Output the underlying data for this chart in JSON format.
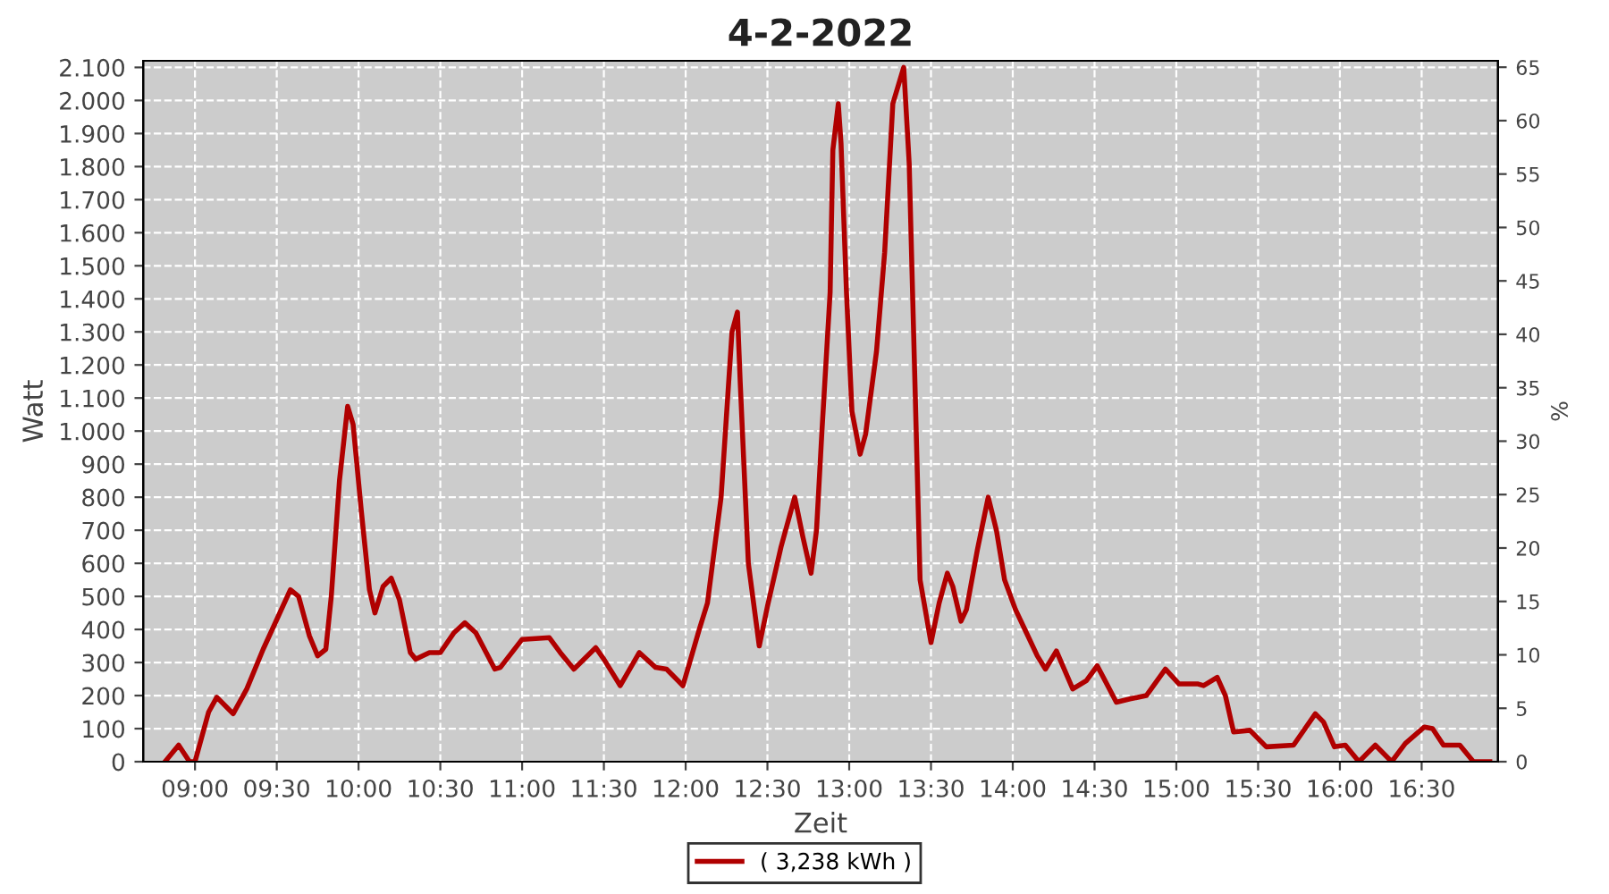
{
  "chart_data": {
    "type": "line",
    "title": "4-2-2022",
    "xlabel": "Zeit",
    "ylabel": "Watt",
    "y2label": "%",
    "x": [
      "2022-02-04T08:49",
      "2022-02-04T08:54",
      "2022-02-04T08:58",
      "2022-02-04T09:00",
      "2022-02-04T09:05",
      "2022-02-04T09:08",
      "2022-02-04T09:14",
      "2022-02-04T09:19",
      "2022-02-04T09:25",
      "2022-02-04T09:30",
      "2022-02-04T09:35",
      "2022-02-04T09:38",
      "2022-02-04T09:42",
      "2022-02-04T09:45",
      "2022-02-04T09:48",
      "2022-02-04T09:50",
      "2022-02-04T09:53",
      "2022-02-04T09:56",
      "2022-02-04T09:58",
      "2022-02-04T10:01",
      "2022-02-04T10:04",
      "2022-02-04T10:06",
      "2022-02-04T10:09",
      "2022-02-04T10:12",
      "2022-02-04T10:15",
      "2022-02-04T10:19",
      "2022-02-04T10:21",
      "2022-02-04T10:26",
      "2022-02-04T10:30",
      "2022-02-04T10:35",
      "2022-02-04T10:39",
      "2022-02-04T10:43",
      "2022-02-04T10:50",
      "2022-02-04T10:52",
      "2022-02-04T11:00",
      "2022-02-04T11:10",
      "2022-02-04T11:14",
      "2022-02-04T11:19",
      "2022-02-04T11:27",
      "2022-02-04T11:30",
      "2022-02-04T11:36",
      "2022-02-04T11:43",
      "2022-02-04T11:49",
      "2022-02-04T11:53",
      "2022-02-04T11:59",
      "2022-02-04T12:05",
      "2022-02-04T12:08",
      "2022-02-04T12:13",
      "2022-02-04T12:17",
      "2022-02-04T12:19",
      "2022-02-04T12:20",
      "2022-02-04T12:23",
      "2022-02-04T12:27",
      "2022-02-04T12:30",
      "2022-02-04T12:35",
      "2022-02-04T12:40",
      "2022-02-04T12:43",
      "2022-02-04T12:46",
      "2022-02-04T12:48",
      "2022-02-04T12:50",
      "2022-02-04T12:53",
      "2022-02-04T12:54",
      "2022-02-04T12:56",
      "2022-02-04T12:57",
      "2022-02-04T12:59",
      "2022-02-04T13:01",
      "2022-02-04T13:04",
      "2022-02-04T13:06",
      "2022-02-04T13:10",
      "2022-02-04T13:13",
      "2022-02-04T13:16",
      "2022-02-04T13:20",
      "2022-02-04T13:22",
      "2022-02-04T13:24",
      "2022-02-04T13:26",
      "2022-02-04T13:30",
      "2022-02-04T13:33",
      "2022-02-04T13:36",
      "2022-02-04T13:38",
      "2022-02-04T13:41",
      "2022-02-04T13:43",
      "2022-02-04T13:47",
      "2022-02-04T13:51",
      "2022-02-04T13:54",
      "2022-02-04T13:57",
      "2022-02-04T14:01",
      "2022-02-04T14:05",
      "2022-02-04T14:09",
      "2022-02-04T14:12",
      "2022-02-04T14:16",
      "2022-02-04T14:22",
      "2022-02-04T14:27",
      "2022-02-04T14:31",
      "2022-02-04T14:38",
      "2022-02-04T14:43",
      "2022-02-04T14:49",
      "2022-02-04T14:56",
      "2022-02-04T15:01",
      "2022-02-04T15:08",
      "2022-02-04T15:10",
      "2022-02-04T15:15",
      "2022-02-04T15:18",
      "2022-02-04T15:21",
      "2022-02-04T15:27",
      "2022-02-04T15:33",
      "2022-02-04T15:43",
      "2022-02-04T15:51",
      "2022-02-04T15:54",
      "2022-02-04T15:58",
      "2022-02-04T16:02",
      "2022-02-04T16:07",
      "2022-02-04T16:13",
      "2022-02-04T16:19",
      "2022-02-04T16:24",
      "2022-02-04T16:31",
      "2022-02-04T16:34",
      "2022-02-04T16:38",
      "2022-02-04T16:44",
      "2022-02-04T16:49",
      "2022-02-04T16:55"
    ],
    "series": [
      {
        "name": "( 3,238 kWh )",
        "color": "#b00000",
        "values": [
          0,
          50,
          0,
          0,
          150,
          195,
          145,
          220,
          340,
          430,
          520,
          500,
          380,
          320,
          340,
          500,
          850,
          1075,
          1020,
          760,
          520,
          450,
          530,
          555,
          490,
          330,
          310,
          330,
          330,
          390,
          420,
          390,
          280,
          285,
          370,
          375,
          330,
          280,
          345,
          310,
          230,
          330,
          285,
          280,
          230,
          400,
          480,
          800,
          1300,
          1360,
          1150,
          600,
          350,
          470,
          650,
          800,
          680,
          570,
          700,
          1000,
          1420,
          1850,
          1990,
          1870,
          1420,
          1060,
          930,
          990,
          1240,
          1540,
          1990,
          2100,
          1810,
          1180,
          550,
          360,
          480,
          570,
          530,
          425,
          460,
          640,
          800,
          700,
          550,
          460,
          390,
          320,
          280,
          335,
          220,
          245,
          290,
          180,
          190,
          200,
          280,
          235,
          235,
          230,
          255,
          200,
          90,
          95,
          45,
          50,
          145,
          120,
          45,
          50,
          0,
          50,
          0,
          55,
          105,
          100,
          50,
          50,
          0,
          0
        ]
      }
    ],
    "xlim": [
      "2022-02-04T08:41",
      "2022-02-04T16:58"
    ],
    "xticks": [
      {
        "value": "2022-02-04T09:00",
        "label": "09:00"
      },
      {
        "value": "2022-02-04T09:30",
        "label": "09:30"
      },
      {
        "value": "2022-02-04T10:00",
        "label": "10:00"
      },
      {
        "value": "2022-02-04T10:30",
        "label": "10:30"
      },
      {
        "value": "2022-02-04T11:00",
        "label": "11:00"
      },
      {
        "value": "2022-02-04T11:30",
        "label": "11:30"
      },
      {
        "value": "2022-02-04T12:00",
        "label": "12:00"
      },
      {
        "value": "2022-02-04T12:30",
        "label": "12:30"
      },
      {
        "value": "2022-02-04T13:00",
        "label": "13:00"
      },
      {
        "value": "2022-02-04T13:30",
        "label": "13:30"
      },
      {
        "value": "2022-02-04T14:00",
        "label": "14:00"
      },
      {
        "value": "2022-02-04T14:30",
        "label": "14:30"
      },
      {
        "value": "2022-02-04T15:00",
        "label": "15:00"
      },
      {
        "value": "2022-02-04T15:30",
        "label": "15:30"
      },
      {
        "value": "2022-02-04T16:00",
        "label": "16:00"
      },
      {
        "value": "2022-02-04T16:30",
        "label": "16:30"
      }
    ],
    "ylim": [
      0,
      2120
    ],
    "yticks": [
      0,
      100,
      200,
      300,
      400,
      500,
      600,
      700,
      800,
      900,
      {
        "value": 1000,
        "label": "1.000"
      },
      {
        "value": 1100,
        "label": "1.100"
      },
      {
        "value": 1200,
        "label": "1.200"
      },
      {
        "value": 1300,
        "label": "1.300"
      },
      {
        "value": 1400,
        "label": "1.400"
      },
      {
        "value": 1500,
        "label": "1.500"
      },
      {
        "value": 1600,
        "label": "1.600"
      },
      {
        "value": 1700,
        "label": "1.700"
      },
      {
        "value": 1800,
        "label": "1.800"
      },
      {
        "value": 1900,
        "label": "1.900"
      },
      {
        "value": 2000,
        "label": "2.000"
      },
      {
        "value": 2100,
        "label": "2.100"
      }
    ],
    "y2lim": [
      0,
      65.6
    ],
    "y2ticks": [
      0,
      5,
      10,
      15,
      20,
      25,
      30,
      35,
      40,
      45,
      50,
      55,
      60,
      65
    ],
    "grid": true,
    "legend": "bottom",
    "marker": "none",
    "line_style": "solid"
  }
}
